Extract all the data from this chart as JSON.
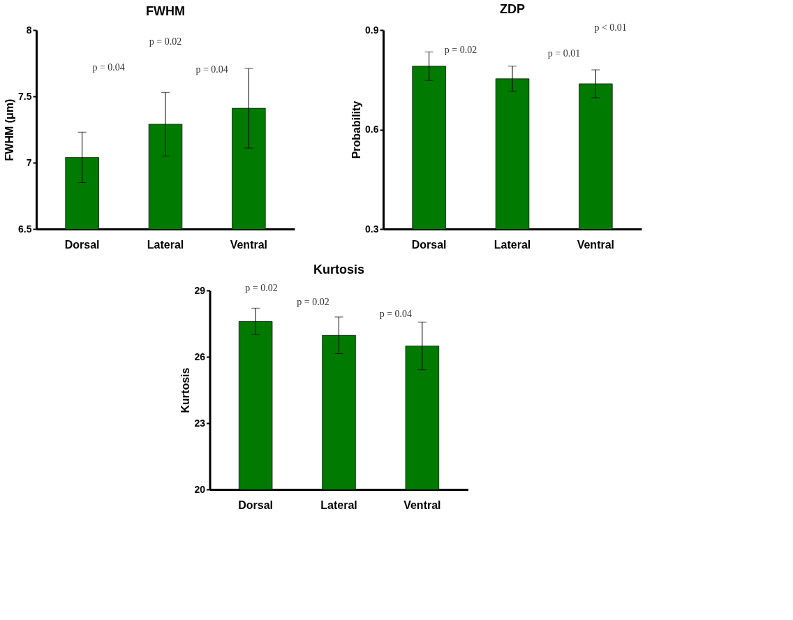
{
  "chart_data": [
    {
      "type": "bar",
      "title": "FWHM",
      "ylabel": "FWHM (μm)",
      "categories": [
        "Dorsal",
        "Lateral",
        "Ventral"
      ],
      "values": [
        7.04,
        7.29,
        7.41
      ],
      "errors": [
        0.19,
        0.24,
        0.3
      ],
      "color": "#007a00",
      "ylim": [
        6.5,
        8
      ],
      "yticks": [
        6.5,
        7,
        7.5,
        8
      ],
      "annotations": [
        "p = 0.02",
        "p = 0.04",
        "p = 0.04"
      ]
    },
    {
      "type": "bar",
      "title": "ZDP",
      "ylabel": "Probability",
      "categories": [
        "Dorsal",
        "Lateral",
        "Ventral"
      ],
      "values": [
        0.791,
        0.753,
        0.738
      ],
      "errors": [
        0.043,
        0.038,
        0.042
      ],
      "color": "#007a00",
      "ylim": [
        0.3,
        0.9
      ],
      "yticks": [
        0.3,
        0.6,
        0.9
      ],
      "annotations": [
        "p < 0.01",
        "p = 0.02",
        "p = 0.01"
      ]
    },
    {
      "type": "bar",
      "title": "Kurtosis",
      "ylabel": "Kurtosis",
      "categories": [
        "Dorsal",
        "Lateral",
        "Ventral"
      ],
      "values": [
        27.6,
        26.97,
        26.49
      ],
      "errors": [
        0.6,
        0.83,
        1.08
      ],
      "color": "#007a00",
      "ylim": [
        20,
        29
      ],
      "yticks": [
        20,
        23,
        26,
        29
      ],
      "annotations": [
        "p = 0.02",
        "p = 0.02",
        "p = 0.04"
      ]
    }
  ]
}
